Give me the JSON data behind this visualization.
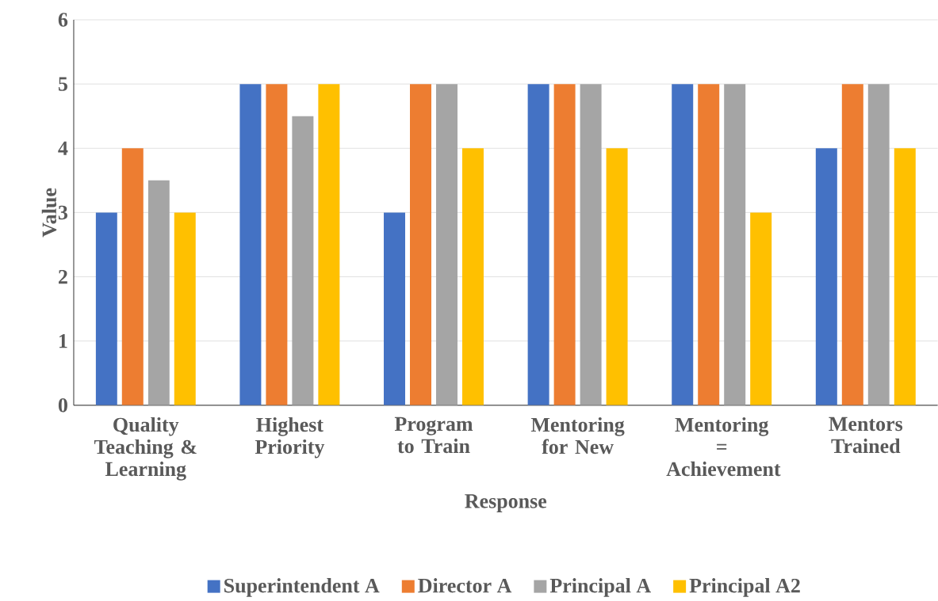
{
  "chart_data": {
    "type": "bar",
    "xlabel": "Response",
    "ylabel": "Value",
    "categories": [
      "Quality Teaching & Learning",
      "Highest Priority",
      "Program to Train",
      "Mentoring for New",
      "Mentoring = Achievement",
      "Mentors Trained"
    ],
    "series": [
      {
        "name": "Superintendent A",
        "color": "#4472c4",
        "values": [
          3,
          5,
          3,
          5,
          5,
          4
        ]
      },
      {
        "name": "Director A",
        "color": "#ed7d31",
        "values": [
          4,
          5,
          5,
          5,
          5,
          5
        ]
      },
      {
        "name": "Principal A",
        "color": "#a5a5a5",
        "values": [
          3.5,
          4.5,
          5,
          5,
          5,
          5
        ]
      },
      {
        "name": "Principal A2",
        "color": "#ffc000",
        "values": [
          3,
          5,
          4,
          4,
          3,
          4
        ]
      }
    ],
    "ylim": [
      0,
      6
    ],
    "yticks": [
      0,
      1,
      2,
      3,
      4,
      5,
      6
    ],
    "grid": "y",
    "legend": "bottom"
  }
}
